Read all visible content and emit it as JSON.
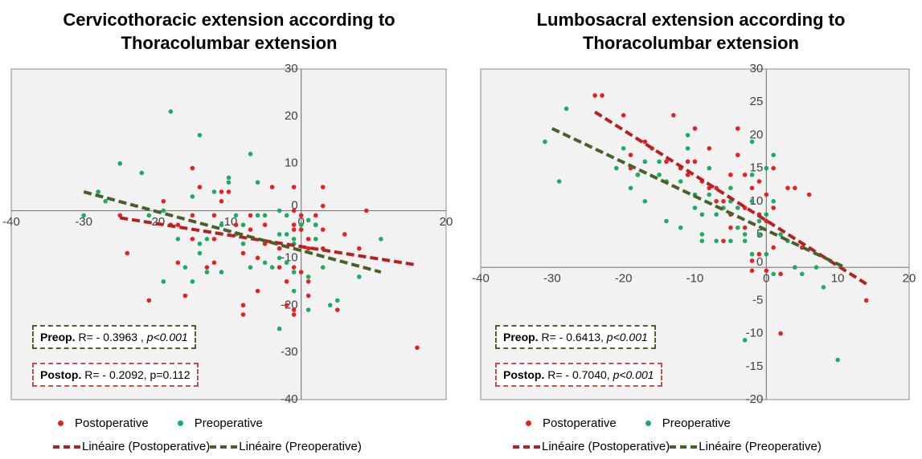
{
  "colors": {
    "postoperative": "#e52222",
    "preoperative": "#1aae63",
    "postoperative_trend": "#b72020",
    "preoperative_trend": "#486127",
    "plot_background": "#f2f2f2"
  },
  "chart_data": [
    {
      "type": "scatter",
      "title": "Cervicothoracic extension according to Thoracolumbar extension",
      "title_lines": [
        "Cervicothoracic extension according to",
        "Thoracolumbar extension"
      ],
      "xlabel": "",
      "ylabel": "",
      "xlim": [
        -40,
        20
      ],
      "ylim": [
        -40,
        30
      ],
      "xticks": [
        -40,
        -30,
        -20,
        -10,
        0,
        20
      ],
      "yticks": [
        -40,
        -30,
        -20,
        -10,
        0,
        10,
        20,
        30
      ],
      "grid": false,
      "legend_placement": "bottom",
      "series": [
        {
          "name": "Postoperative",
          "key": "post",
          "points": [
            [
              -25,
              -1
            ],
            [
              -24,
              -9
            ],
            [
              -21,
              -19
            ],
            [
              -19,
              2
            ],
            [
              -18,
              -3
            ],
            [
              -17,
              -3
            ],
            [
              -17,
              -11
            ],
            [
              -16,
              -18
            ],
            [
              -15,
              -1
            ],
            [
              -15,
              -6
            ],
            [
              -15,
              9
            ],
            [
              -14,
              5
            ],
            [
              -13,
              -12
            ],
            [
              -12,
              -11
            ],
            [
              -12,
              -1
            ],
            [
              -12,
              -6
            ],
            [
              -11,
              4
            ],
            [
              -11,
              2
            ],
            [
              -10,
              4
            ],
            [
              -9,
              -3
            ],
            [
              -8,
              -20
            ],
            [
              -8,
              -22
            ],
            [
              -8,
              -9
            ],
            [
              -7,
              -1
            ],
            [
              -7,
              -4
            ],
            [
              -6,
              -10
            ],
            [
              -6,
              -17
            ],
            [
              -5,
              -3
            ],
            [
              -5,
              -7
            ],
            [
              -4,
              5
            ],
            [
              -3,
              -8
            ],
            [
              -3,
              -12
            ],
            [
              -2,
              -15
            ],
            [
              -2,
              -20
            ],
            [
              -1,
              -21
            ],
            [
              -1,
              -22
            ],
            [
              -1,
              -12
            ],
            [
              -1,
              -3
            ],
            [
              -1,
              -4
            ],
            [
              -1,
              5
            ],
            [
              -1,
              0
            ],
            [
              0,
              -1
            ],
            [
              0,
              -4
            ],
            [
              0,
              -13
            ],
            [
              1,
              -15
            ],
            [
              1,
              -18
            ],
            [
              1,
              -6
            ],
            [
              1,
              -8
            ],
            [
              2,
              -1
            ],
            [
              2,
              -3
            ],
            [
              3,
              -4
            ],
            [
              3,
              -8
            ],
            [
              3,
              1
            ],
            [
              3,
              5
            ],
            [
              5,
              -21
            ],
            [
              6,
              -5
            ],
            [
              8,
              -8
            ],
            [
              9,
              0
            ],
            [
              16,
              -29
            ]
          ]
        },
        {
          "name": "Preoperative",
          "key": "pre",
          "points": [
            [
              -30,
              -1
            ],
            [
              -28,
              4
            ],
            [
              -27,
              2
            ],
            [
              -25,
              10
            ],
            [
              -22,
              8
            ],
            [
              -21,
              -1
            ],
            [
              -19,
              -15
            ],
            [
              -19,
              0
            ],
            [
              -18,
              21
            ],
            [
              -17,
              -6
            ],
            [
              -16,
              -12
            ],
            [
              -15,
              -15
            ],
            [
              -15,
              3
            ],
            [
              -14,
              16
            ],
            [
              -14,
              -7
            ],
            [
              -14,
              -9
            ],
            [
              -13,
              -6
            ],
            [
              -13,
              -13
            ],
            [
              -12,
              4
            ],
            [
              -11,
              -3
            ],
            [
              -11,
              -13
            ],
            [
              -10,
              6
            ],
            [
              -10,
              7
            ],
            [
              -9,
              -5
            ],
            [
              -9,
              -1
            ],
            [
              -8,
              -3
            ],
            [
              -8,
              -7
            ],
            [
              -7,
              12
            ],
            [
              -7,
              -12
            ],
            [
              -6,
              6
            ],
            [
              -6,
              -1
            ],
            [
              -5,
              -1
            ],
            [
              -5,
              -11
            ],
            [
              -4,
              -12
            ],
            [
              -3,
              -25
            ],
            [
              -3,
              -10
            ],
            [
              -3,
              -5
            ],
            [
              -3,
              0
            ],
            [
              -2,
              -1
            ],
            [
              -2,
              -5
            ],
            [
              -2,
              -11
            ],
            [
              -1,
              -6
            ],
            [
              -1,
              -7
            ],
            [
              -1,
              -13
            ],
            [
              -1,
              -17
            ],
            [
              0,
              -3
            ],
            [
              1,
              -21
            ],
            [
              1,
              -14
            ],
            [
              1,
              -2
            ],
            [
              2,
              -3
            ],
            [
              2,
              -6
            ],
            [
              3,
              -12
            ],
            [
              4,
              -20
            ],
            [
              5,
              -19
            ],
            [
              8,
              -14
            ],
            [
              11,
              -6
            ]
          ]
        }
      ],
      "trendlines": [
        {
          "name": "Linéaire (Postoperative)",
          "key": "post",
          "x": [
            -25,
            16
          ],
          "y": [
            -1.5,
            -11.5
          ]
        },
        {
          "name": "Linéaire (Preoperative)",
          "key": "pre",
          "x": [
            -30,
            11
          ],
          "y": [
            4,
            -13
          ]
        }
      ],
      "stat_boxes": [
        {
          "key": "preop",
          "label": "Preop.",
          "text": "R= - 0.3963 , ",
          "pvalue": "p<0.001"
        },
        {
          "key": "postop",
          "label": "Postop.",
          "text": "R= - 0.2092, p=0.112",
          "pvalue": ""
        }
      ],
      "legend": {
        "marker_labels": [
          "Postoperative",
          "Preoperative"
        ],
        "line_labels": [
          "Linéaire (Postoperative)",
          "Linéaire (Preoperative)"
        ]
      }
    },
    {
      "type": "scatter",
      "title": "Lumbosacral extension according to Thoracolumbar extension",
      "title_lines": [
        "Lumbosacral extension according to",
        "Thoracolumbar extension"
      ],
      "xlabel": "",
      "ylabel": "",
      "xlim": [
        -40,
        20
      ],
      "ylim": [
        -20,
        30
      ],
      "xticks": [
        -40,
        -30,
        -20,
        -10,
        0,
        10,
        20
      ],
      "yticks": [
        -20,
        -15,
        -10,
        -5,
        0,
        5,
        10,
        15,
        20,
        25,
        30
      ],
      "grid": false,
      "legend_placement": "bottom",
      "series": [
        {
          "name": "Postoperative",
          "key": "post",
          "points": [
            [
              -24,
              26
            ],
            [
              -23,
              26
            ],
            [
              -20,
              23
            ],
            [
              -19,
              17
            ],
            [
              -19,
              15
            ],
            [
              -18,
              14
            ],
            [
              -17,
              19
            ],
            [
              -16,
              18
            ],
            [
              -14,
              16
            ],
            [
              -13,
              23
            ],
            [
              -12,
              15
            ],
            [
              -11,
              16
            ],
            [
              -11,
              14
            ],
            [
              -10,
              21
            ],
            [
              -10,
              16
            ],
            [
              -9,
              13
            ],
            [
              -8,
              18
            ],
            [
              -8,
              12
            ],
            [
              -7,
              12
            ],
            [
              -7,
              10
            ],
            [
              -6,
              10
            ],
            [
              -6,
              4
            ],
            [
              -5,
              14
            ],
            [
              -5,
              8
            ],
            [
              -5,
              6
            ],
            [
              -4,
              21
            ],
            [
              -4,
              17
            ],
            [
              -3,
              14
            ],
            [
              -3,
              9
            ],
            [
              -3,
              6
            ],
            [
              -2,
              12
            ],
            [
              -2,
              1
            ],
            [
              -2,
              -0.5
            ],
            [
              -1,
              13
            ],
            [
              -1,
              8
            ],
            [
              -1,
              2
            ],
            [
              0,
              11
            ],
            [
              0,
              7
            ],
            [
              0,
              -0.5
            ],
            [
              1,
              15
            ],
            [
              1,
              9
            ],
            [
              1,
              3
            ],
            [
              2,
              -1
            ],
            [
              2,
              -10
            ],
            [
              3,
              12
            ],
            [
              4,
              12
            ],
            [
              5,
              3
            ],
            [
              6,
              11
            ],
            [
              14,
              -5
            ]
          ]
        },
        {
          "name": "Preoperative",
          "key": "pre",
          "points": [
            [
              -31,
              19
            ],
            [
              -29,
              13
            ],
            [
              -28,
              24
            ],
            [
              -21,
              15
            ],
            [
              -20,
              18
            ],
            [
              -19,
              12
            ],
            [
              -18,
              14
            ],
            [
              -17,
              16
            ],
            [
              -17,
              10
            ],
            [
              -15,
              16
            ],
            [
              -15,
              14
            ],
            [
              -14,
              13
            ],
            [
              -14,
              7
            ],
            [
              -12,
              6
            ],
            [
              -12,
              13
            ],
            [
              -11,
              20
            ],
            [
              -11,
              18
            ],
            [
              -10,
              11
            ],
            [
              -10,
              9
            ],
            [
              -9,
              8
            ],
            [
              -9,
              5
            ],
            [
              -9,
              4
            ],
            [
              -8,
              15
            ],
            [
              -8,
              11
            ],
            [
              -7,
              8
            ],
            [
              -7,
              4
            ],
            [
              -6,
              9
            ],
            [
              -5,
              12
            ],
            [
              -5,
              10
            ],
            [
              -5,
              4
            ],
            [
              -4,
              9
            ],
            [
              -4,
              6
            ],
            [
              -3,
              4
            ],
            [
              -3,
              5
            ],
            [
              -2,
              14
            ],
            [
              -2,
              19
            ],
            [
              -2,
              10
            ],
            [
              -2,
              2
            ],
            [
              -1,
              7
            ],
            [
              -1,
              5
            ],
            [
              0,
              15
            ],
            [
              0,
              8
            ],
            [
              0,
              2
            ],
            [
              1,
              17
            ],
            [
              1,
              10
            ],
            [
              1,
              -1
            ],
            [
              2,
              5
            ],
            [
              3,
              4
            ],
            [
              4,
              0
            ],
            [
              5,
              -1
            ],
            [
              7,
              0
            ],
            [
              8,
              -3
            ],
            [
              10,
              -14
            ],
            [
              -3,
              -11
            ]
          ]
        }
      ],
      "trendlines": [
        {
          "name": "Linéaire (Postoperative)",
          "key": "post",
          "x": [
            -24,
            14
          ],
          "y": [
            23.5,
            -2.5
          ]
        },
        {
          "name": "Linéaire (Preoperative)",
          "key": "pre",
          "x": [
            -30,
            11
          ],
          "y": [
            21,
            0
          ]
        }
      ],
      "stat_boxes": [
        {
          "key": "preop",
          "label": "Preop.",
          "text": "R= - 0.6413, ",
          "pvalue": "p<0.001"
        },
        {
          "key": "postop",
          "label": "Postop.",
          "text": "R= - 0.7040, ",
          "pvalue": "p<0.001"
        }
      ],
      "legend": {
        "marker_labels": [
          "Postoperative",
          "Preoperative"
        ],
        "line_labels": [
          "Linéaire (Postoperative)",
          "Linéaire (Preoperative)"
        ]
      }
    }
  ]
}
